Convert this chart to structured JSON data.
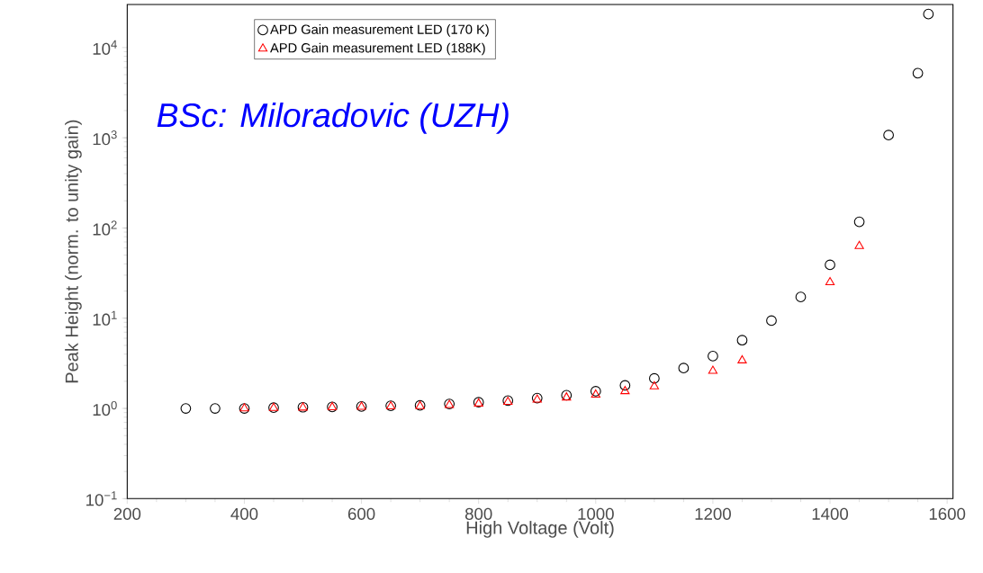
{
  "chart_data": {
    "type": "scatter",
    "xlabel": "High Voltage (Volt)",
    "ylabel": "Peak Height (norm. to unity gain)",
    "annotations": [
      "BSc: Miloradovic (UZH)"
    ],
    "log": "y",
    "xlim": [
      200,
      1610
    ],
    "ylim": [
      0.1,
      30000
    ],
    "xticks": [
      200,
      400,
      600,
      800,
      1000,
      1200,
      1400,
      1600
    ],
    "yticks": [
      {
        "value": 0.1,
        "label": "10$^{−1}$"
      },
      {
        "value": 1,
        "label": "10$^{0}$"
      },
      {
        "value": 10,
        "label": "10$^{1}$"
      },
      {
        "value": 100,
        "label": "10$^{2}$"
      },
      {
        "value": 1000,
        "label": "10$^{3}$"
      },
      {
        "value": 10000,
        "label": "10$^{4}$"
      }
    ],
    "grid": false,
    "legend": "top",
    "series": [
      {
        "name": "APD Gain measurement LED (170 K)",
        "color": "#000000",
        "marker": "circle",
        "x": [
          300,
          350,
          400,
          450,
          500,
          550,
          600,
          650,
          700,
          750,
          800,
          850,
          900,
          950,
          1000,
          1050,
          1100,
          1150,
          1200,
          1250,
          1300,
          1350,
          1400,
          1450,
          1500,
          1550,
          1568
        ],
        "values": [
          1.0,
          1.0,
          1.0,
          1.02,
          1.03,
          1.04,
          1.05,
          1.07,
          1.08,
          1.12,
          1.17,
          1.22,
          1.3,
          1.4,
          1.55,
          1.8,
          2.15,
          2.8,
          3.8,
          5.7,
          9.4,
          17.2,
          39,
          117,
          1070,
          5200,
          23500
        ]
      },
      {
        "name": "APD Gain measurement LED (188K)",
        "color": "#ff0000",
        "marker": "triangle",
        "x": [
          400,
          450,
          500,
          550,
          600,
          650,
          700,
          750,
          800,
          850,
          900,
          950,
          1000,
          1050,
          1100,
          1200,
          1250,
          1400,
          1450
        ],
        "values": [
          1.0,
          1.01,
          1.02,
          1.03,
          1.04,
          1.05,
          1.06,
          1.09,
          1.13,
          1.18,
          1.25,
          1.32,
          1.42,
          1.55,
          1.75,
          2.6,
          3.4,
          25,
          63
        ]
      }
    ]
  }
}
